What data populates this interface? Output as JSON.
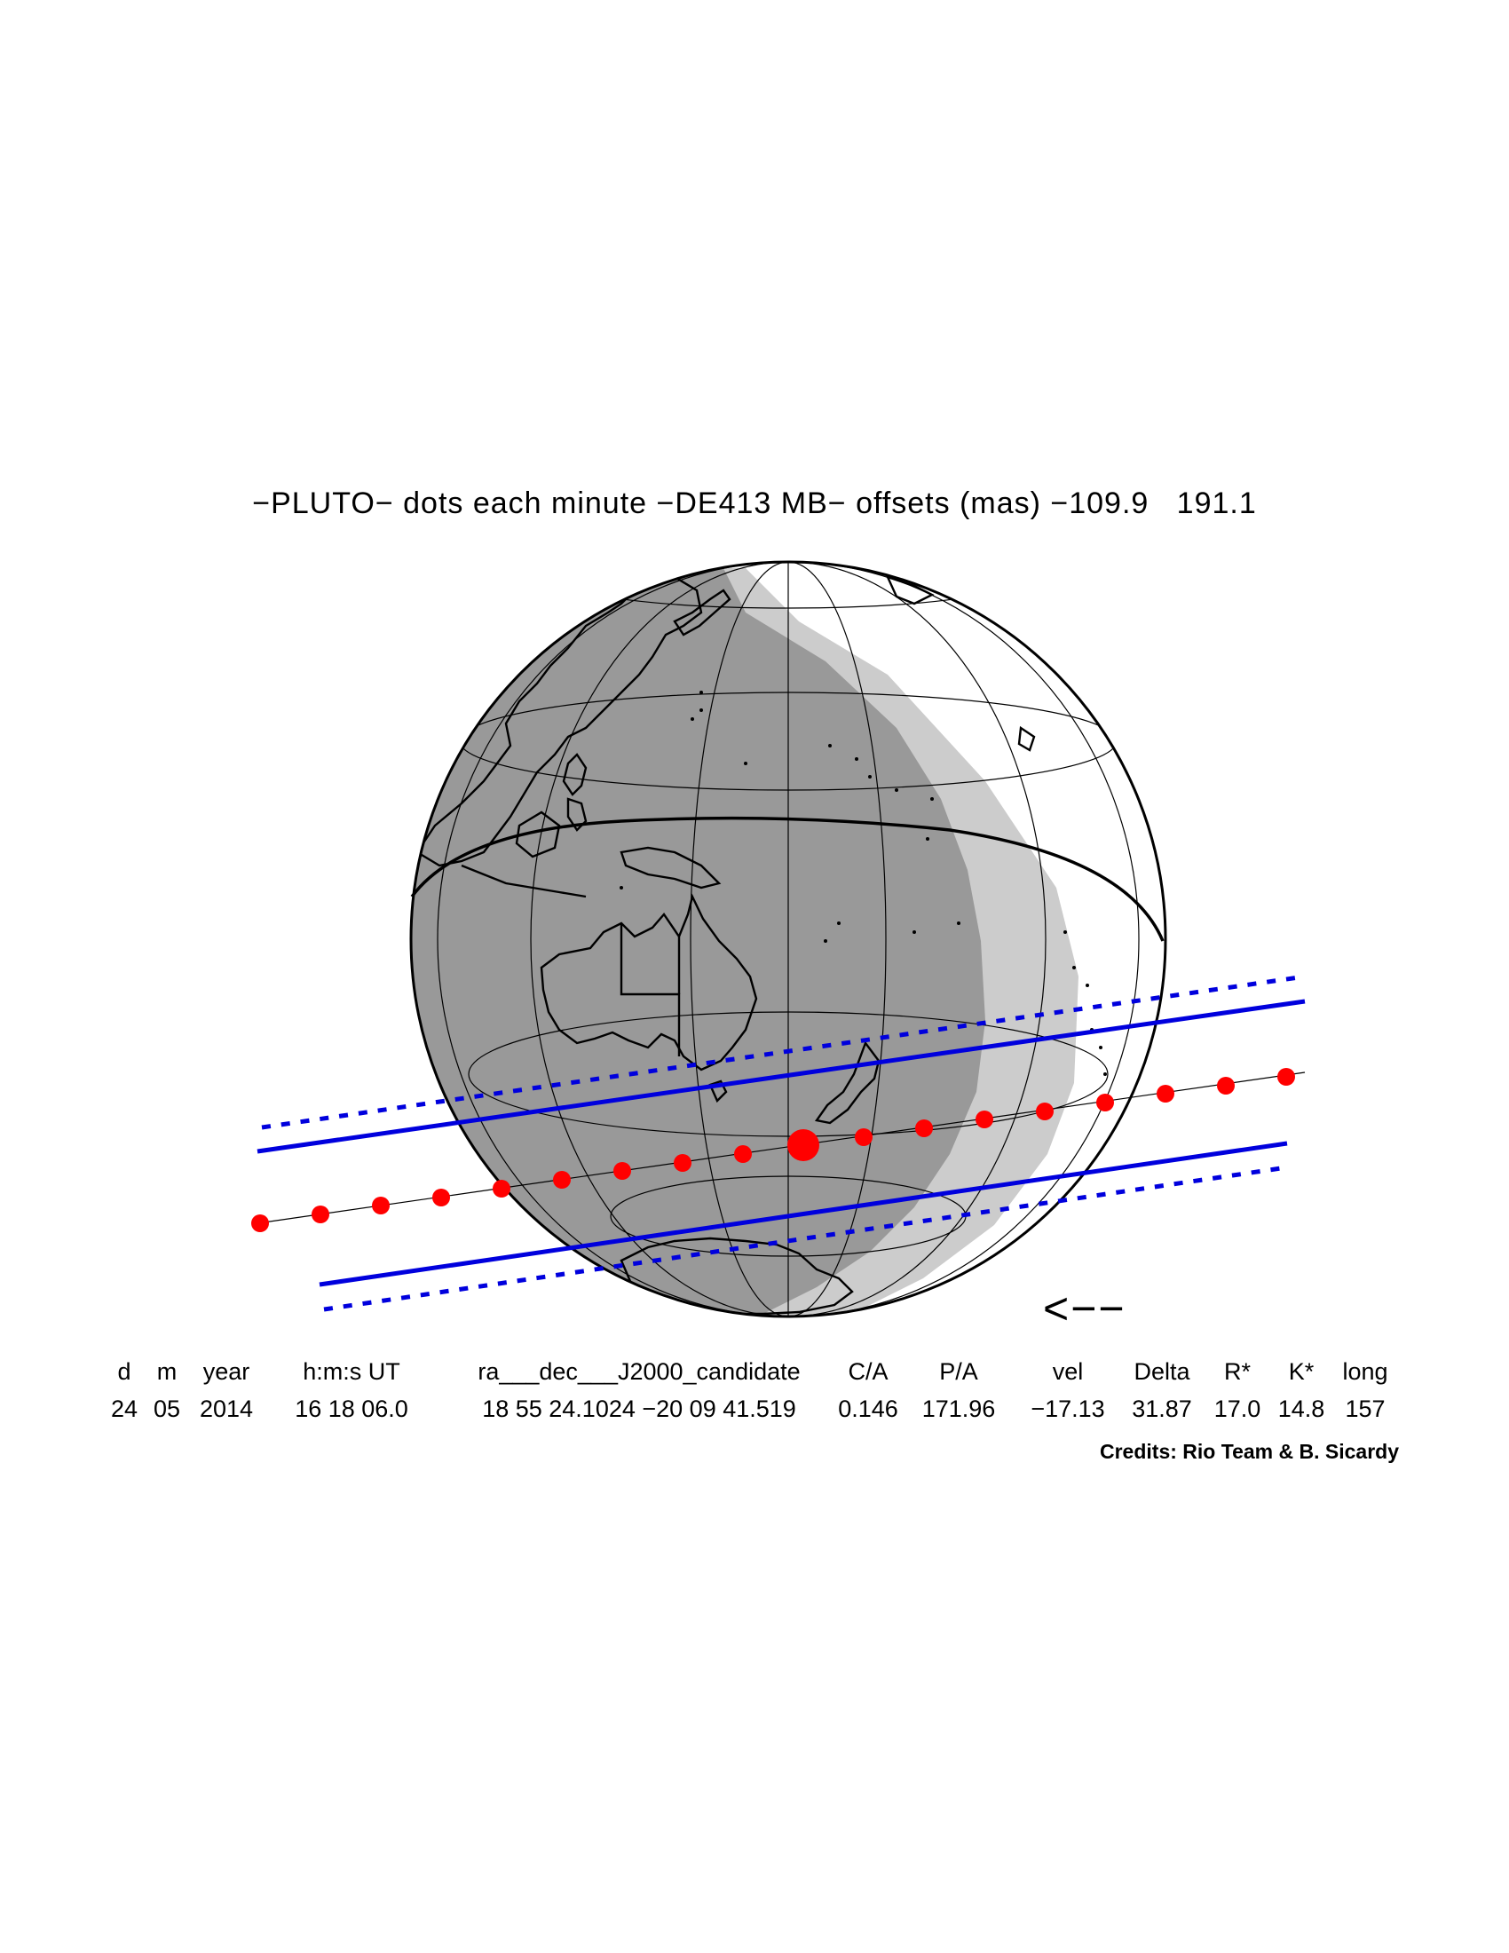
{
  "title": "−PLUTO− dots each minute −DE413 MB− offsets (mas) −109.9   191.1",
  "direction_arrow": "<−−",
  "credits": "Credits: Rio Team & B. Sicardy",
  "table": {
    "headers": [
      "d",
      "m",
      "year",
      "h:m:s UT",
      "ra___dec___J2000_candidate",
      "C/A",
      "P/A",
      "vel",
      "Delta",
      "R*",
      "K*",
      "long"
    ],
    "values": [
      "24",
      "05",
      "2014",
      "16 18 06.0",
      "18 55 24.1024 −20 09 41.519",
      "0.146",
      "171.96",
      "−17.13",
      "31.87",
      "17.0",
      "14.8",
      "157"
    ]
  },
  "colors": {
    "night": "#999999",
    "twilight": "#cccccc",
    "day": "#ffffff",
    "path_dots": "#ff0000",
    "shadow_limits": "#0000dd",
    "coastlines": "#000000"
  },
  "icons": [
    "globe-map",
    "shadow-track"
  ]
}
